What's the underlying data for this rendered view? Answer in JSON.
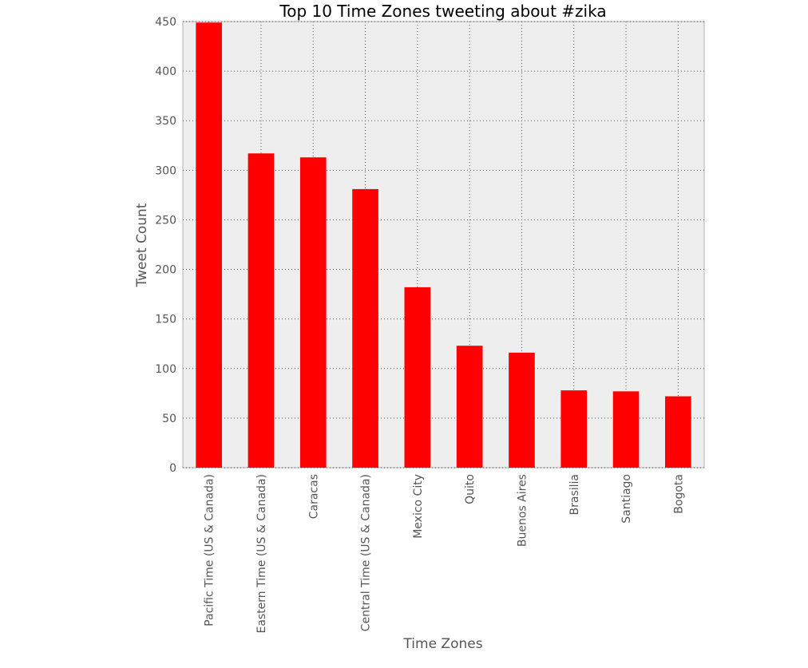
{
  "chart_data": {
    "type": "bar",
    "title": "Top 10 Time Zones tweeting about #zika",
    "xlabel": "Time Zones",
    "ylabel": "Tweet Count",
    "categories": [
      "Pacific Time (US & Canada)",
      "Eastern Time (US & Canada)",
      "Caracas",
      "Central Time (US & Canada)",
      "Mexico City",
      "Quito",
      "Buenos Aires",
      "Brasilia",
      "Santiago",
      "Bogota"
    ],
    "values": [
      449,
      317,
      313,
      281,
      182,
      123,
      116,
      78,
      77,
      72
    ],
    "ylim": [
      0,
      450
    ],
    "yticks": [
      0,
      50,
      100,
      150,
      200,
      250,
      300,
      350,
      400,
      450
    ],
    "grid": true,
    "bar_color": "#ff0000",
    "background_color": "#eeeeee"
  }
}
